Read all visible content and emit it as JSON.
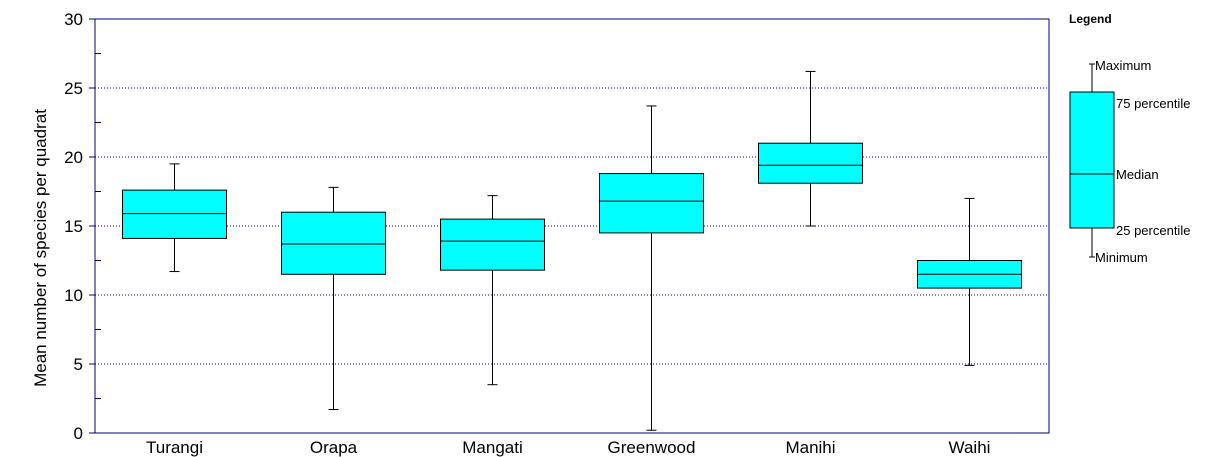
{
  "chart_data": {
    "type": "box",
    "ylabel": "Mean number of species per quadrat",
    "xlabel": "",
    "ylim": [
      0,
      30
    ],
    "yticks": [
      0,
      5,
      10,
      15,
      20,
      25,
      30
    ],
    "grid": true,
    "categories": [
      "Turangi",
      "Orapa",
      "Mangati",
      "Greenwood",
      "Manihi",
      "Waihi"
    ],
    "boxes": [
      {
        "min": 11.7,
        "q1": 14.1,
        "median": 15.9,
        "q3": 17.6,
        "max": 19.5
      },
      {
        "min": 1.7,
        "q1": 11.5,
        "median": 13.7,
        "q3": 16.0,
        "max": 17.8
      },
      {
        "min": 3.5,
        "q1": 11.8,
        "median": 13.9,
        "q3": 15.5,
        "max": 17.2
      },
      {
        "min": 0.2,
        "q1": 14.5,
        "median": 16.8,
        "q3": 18.8,
        "max": 23.7
      },
      {
        "min": 15.0,
        "q1": 18.1,
        "median": 19.4,
        "q3": 21.0,
        "max": 26.2
      },
      {
        "min": 4.9,
        "q1": 10.5,
        "median": 11.5,
        "q3": 12.5,
        "max": 17.0
      }
    ],
    "legend": {
      "title": "Legend",
      "position": "right",
      "labels": {
        "max": "Maximum",
        "q3": "75 percentile",
        "median": "Median",
        "q1": "25 percentile",
        "min": "Minimum"
      }
    },
    "colors": {
      "box_fill": "#00ffff",
      "axis": "#000080",
      "grid": "#000080",
      "line": "#000000"
    }
  }
}
